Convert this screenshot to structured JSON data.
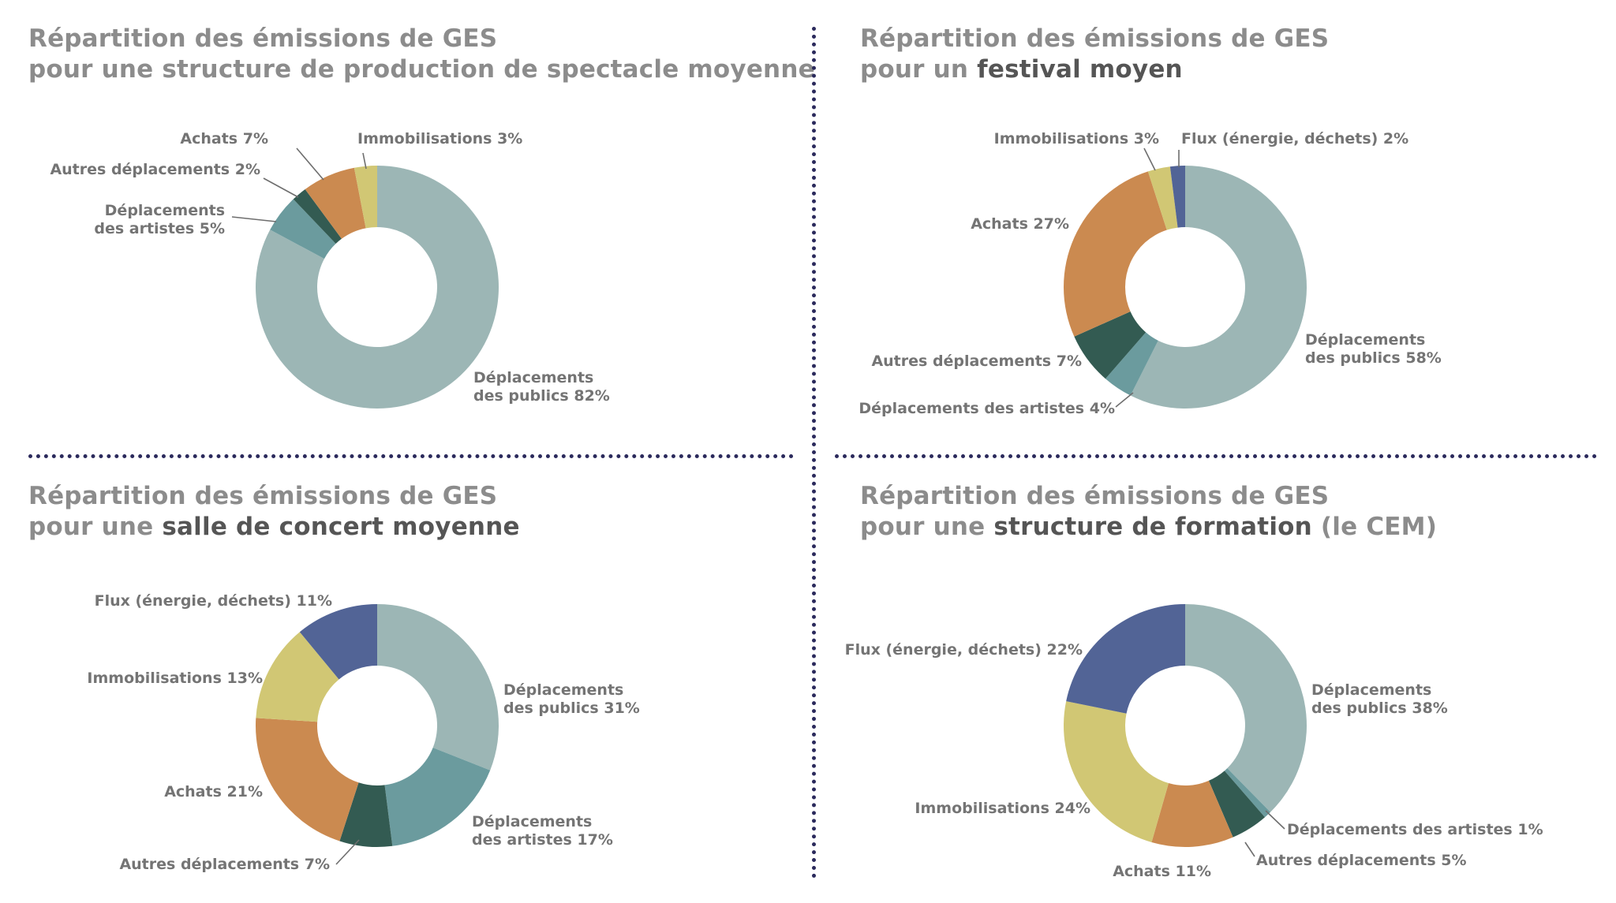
{
  "colors": {
    "publics": "#9cb6b5",
    "artistes": "#6b9b9e",
    "autres": "#335b52",
    "achats": "#cb8a50",
    "immo": "#d1c774",
    "flux": "#526496"
  },
  "charts": [
    {
      "title_line1": "Répartition des émissions de GES",
      "title_line2_prefix": "pour une structure de production de spectacle moyenne",
      "title_line2_strong": "",
      "title_line2_suffix": "",
      "chart_data": {
        "type": "pie",
        "categories": [
          "Déplacements des publics",
          "Déplacements des artistes",
          "Autres déplacements",
          "Achats",
          "Immobilisations"
        ],
        "values": [
          82,
          5,
          2,
          7,
          3
        ],
        "unit": "%",
        "labels": [
          "Déplacements\ndes publics 82%",
          "Déplacements\ndes artistes 5%",
          "Autres déplacements 2%",
          "Achats 7%",
          "Immobilisations 3%"
        ],
        "colors": [
          "publics",
          "artistes",
          "autres",
          "achats",
          "immo"
        ]
      }
    },
    {
      "title_line1": "Répartition des émissions de GES",
      "title_line2_prefix": "pour un ",
      "title_line2_strong": "festival moyen",
      "title_line2_suffix": "",
      "chart_data": {
        "type": "pie",
        "categories": [
          "Déplacements des publics",
          "Déplacements des artistes",
          "Autres déplacements",
          "Achats",
          "Immobilisations",
          "Flux (énergie, déchets)"
        ],
        "values": [
          58,
          4,
          7,
          27,
          3,
          2
        ],
        "unit": "%",
        "labels": [
          "Déplacements\ndes publics 58%",
          "Déplacements des artistes 4%",
          "Autres déplacements 7%",
          "Achats 27%",
          "Immobilisations 3%",
          "Flux (énergie, déchets) 2%"
        ],
        "colors": [
          "publics",
          "artistes",
          "autres",
          "achats",
          "immo",
          "flux"
        ]
      }
    },
    {
      "title_line1": "Répartition des émissions de GES",
      "title_line2_prefix": "pour une ",
      "title_line2_strong": "salle de concert moyenne",
      "title_line2_suffix": "",
      "chart_data": {
        "type": "pie",
        "categories": [
          "Déplacements des publics",
          "Déplacements des artistes",
          "Autres déplacements",
          "Achats",
          "Immobilisations",
          "Flux (énergie, déchets)"
        ],
        "values": [
          31,
          17,
          7,
          21,
          13,
          11
        ],
        "unit": "%",
        "labels": [
          "Déplacements\ndes publics 31%",
          "Déplacements\ndes artistes 17%",
          "Autres déplacements 7%",
          "Achats 21%",
          "Immobilisations 13%",
          "Flux (énergie, déchets) 11%"
        ],
        "colors": [
          "publics",
          "artistes",
          "autres",
          "achats",
          "immo",
          "flux"
        ]
      }
    },
    {
      "title_line1": "Répartition des émissions de GES",
      "title_line2_prefix": "pour une ",
      "title_line2_strong": "structure de formation",
      "title_line2_suffix": " (le CEM)",
      "chart_data": {
        "type": "pie",
        "categories": [
          "Déplacements des publics",
          "Déplacements des artistes",
          "Autres déplacements",
          "Achats",
          "Immobilisations",
          "Flux (énergie, déchets)"
        ],
        "values": [
          38,
          1,
          5,
          11,
          24,
          22
        ],
        "unit": "%",
        "labels": [
          "Déplacements\ndes publics 38%",
          "Déplacements des artistes 1%",
          "Autres déplacements 5%",
          "Achats 11%",
          "Immobilisations 24%",
          "Flux (énergie, déchets) 22%"
        ],
        "colors": [
          "publics",
          "artistes",
          "autres",
          "achats",
          "immo",
          "flux"
        ]
      }
    }
  ]
}
